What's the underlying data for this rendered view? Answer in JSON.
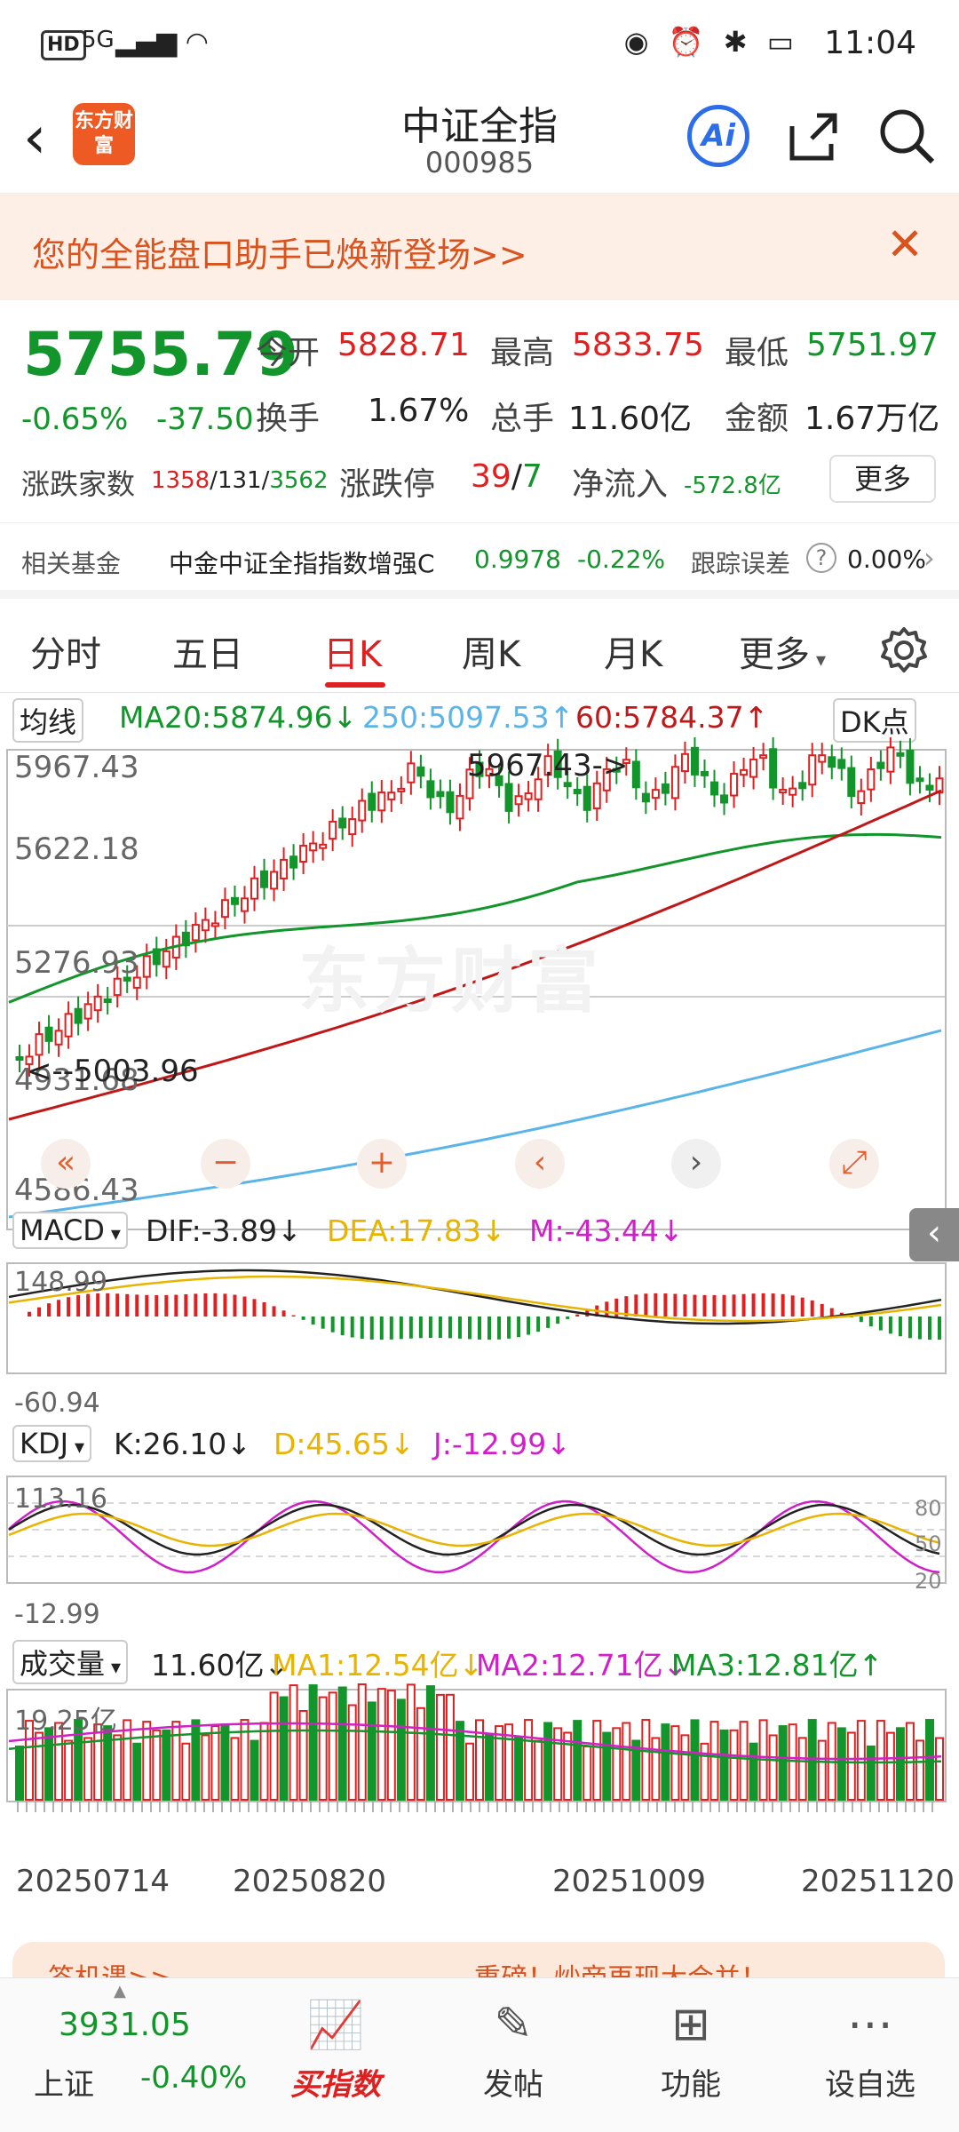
{
  "status": {
    "hd": "HD",
    "signal": "5G",
    "time": "11:04",
    "icons": "◉ ⏰ ✱ ▭"
  },
  "header": {
    "title": "中证全指",
    "code": "000985",
    "logo": "东方财富",
    "ai": "Ai"
  },
  "banner": {
    "text": "您的全能盘口助手已焕新登场>>",
    "close": "✕"
  },
  "quote": {
    "price": "5755.79",
    "change_pct": "-0.65%",
    "change": "-37.50",
    "open_label": "今开",
    "open": "5828.71",
    "high_label": "最高",
    "high": "5833.75",
    "low_label": "最低",
    "low": "5751.97",
    "turnover_label": "换手",
    "turnover": "1.67%",
    "volume_label": "总手",
    "volume": "11.60亿",
    "amount_label": "金额",
    "amount": "1.67万亿",
    "breadth_label": "涨跌家数",
    "breadth_up": "1358",
    "breadth_sep1": "/",
    "breadth_flat": "131",
    "breadth_sep2": "/",
    "breadth_down": "3562",
    "limit_label": "涨跌停",
    "limit_up": "39",
    "limit_sep": "/",
    "limit_down": "7",
    "netflow_label": "净流入",
    "netflow": "-572.8亿",
    "more": "更多"
  },
  "fund": {
    "label": "相关基金",
    "name": "中金中证全指指数增强C",
    "nav": "0.9978",
    "chg": "-0.22%",
    "err_label": "跟踪误差",
    "err": "0.00%"
  },
  "tabs": [
    "分时",
    "五日",
    "日K",
    "周K",
    "月K",
    "更多"
  ],
  "ma": {
    "type": "均线",
    "ma20": "MA20:5874.96↓",
    "ma250": "250:5097.53↑",
    "ma60": "60:5784.37↑",
    "dk": "DK点"
  },
  "kline": {
    "y_labels": [
      "5967.43",
      "5622.18",
      "5276.93",
      "4931.68",
      "4586.43"
    ],
    "high_mark": "5967.43->",
    "low_mark": "<--5003.96",
    "watermark": "东方财富"
  },
  "macd": {
    "label": "MACD",
    "dif": "DIF:-3.89↓",
    "dea": "DEA:17.83↓",
    "m": "M:-43.44↓",
    "y_top": "148.99",
    "y_bot": "-60.94"
  },
  "kdj": {
    "label": "KDJ",
    "k": "K:26.10↓",
    "d": "D:45.65↓",
    "j": "J:-12.99↓",
    "y_top": "113.16",
    "y_bot": "-12.99",
    "r80": "80",
    "r50": "50",
    "r20": "20"
  },
  "vol": {
    "label": "成交量",
    "v": "11.60亿↓",
    "ma1": "MA1:12.54亿↓",
    "ma2": "MA2:12.71亿↓",
    "ma3": "MA3:12.81亿↑",
    "y_top": "19.25亿"
  },
  "dates": [
    "20250714",
    "20250820",
    "20251009",
    "20251120"
  ],
  "promo": {
    "left": "答机遇>>",
    "right": "重磅！炒帝再现大会并！"
  },
  "bottom": {
    "sh_price": "3931.05",
    "sh_label": "上证",
    "sh_chg": "-0.40%",
    "buy": "买指数",
    "post": "发帖",
    "func": "功能",
    "watch": "设自选"
  },
  "colors": {
    "up": "#e02020",
    "down": "#12952a",
    "ma20": "#12952a",
    "ma250": "#5ab4e8",
    "ma60": "#c01818",
    "dea": "#e8b400",
    "j": "#d020c8"
  }
}
